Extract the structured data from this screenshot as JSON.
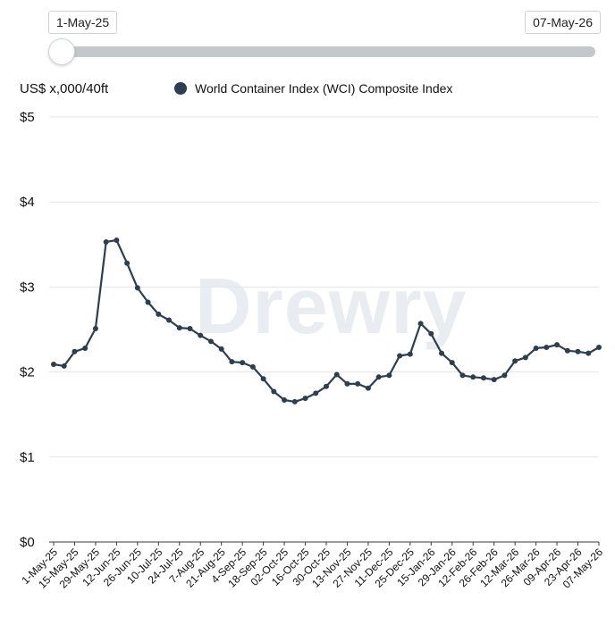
{
  "slider": {
    "start_label": "1-May-25",
    "end_label": "07-May-26",
    "position": 0
  },
  "unit_label": "US$ x,000/40ft",
  "watermark": "Drewry",
  "colors": {
    "series": "#2d3e50",
    "grid": "#e3e6ea",
    "axis": "#3a3a3a"
  },
  "chart_data": {
    "type": "line",
    "title": "",
    "xlabel": "",
    "ylabel": "US$ x,000/40ft",
    "ylim": [
      0,
      5
    ],
    "yticks": [
      "$0",
      "$1",
      "$2",
      "$3",
      "$4",
      "$5"
    ],
    "grid": true,
    "legend_position": "top",
    "x_tick_labels": [
      "1-May-25",
      "15-May-25",
      "29-May-25",
      "12-Jun-25",
      "26-Jun-25",
      "10-Jul-25",
      "24-Jul-25",
      "7-Aug-25",
      "21-Aug-25",
      "4-Sep-25",
      "18-Sep-25",
      "02-Oct-25",
      "16-Oct-25",
      "30-Oct-25",
      "13-Nov-25",
      "27-Nov-25",
      "11-Dec-25",
      "25-Dec-25",
      "15-Jan-26",
      "29-Jan-26",
      "12-Feb-26",
      "26-Feb-26",
      "12-Mar-26",
      "26-Mar-26",
      "09-Apr-26",
      "23-Apr-26",
      "07-May-26"
    ],
    "series": [
      {
        "name": "World Container Index (WCI) Composite Index",
        "values": [
          2.09,
          2.07,
          2.24,
          2.28,
          2.51,
          3.53,
          3.55,
          3.28,
          2.99,
          2.82,
          2.68,
          2.61,
          2.52,
          2.51,
          2.43,
          2.36,
          2.27,
          2.12,
          2.11,
          2.06,
          1.92,
          1.77,
          1.67,
          1.65,
          1.69,
          1.75,
          1.83,
          1.97,
          1.86,
          1.86,
          1.81,
          1.94,
          1.96,
          2.19,
          2.21,
          2.57,
          2.45,
          2.22,
          2.11,
          1.96,
          1.94,
          1.93,
          1.91,
          1.96,
          2.13,
          2.17,
          2.28,
          2.29,
          2.32,
          2.25,
          2.24,
          2.22,
          2.29
        ]
      }
    ]
  }
}
